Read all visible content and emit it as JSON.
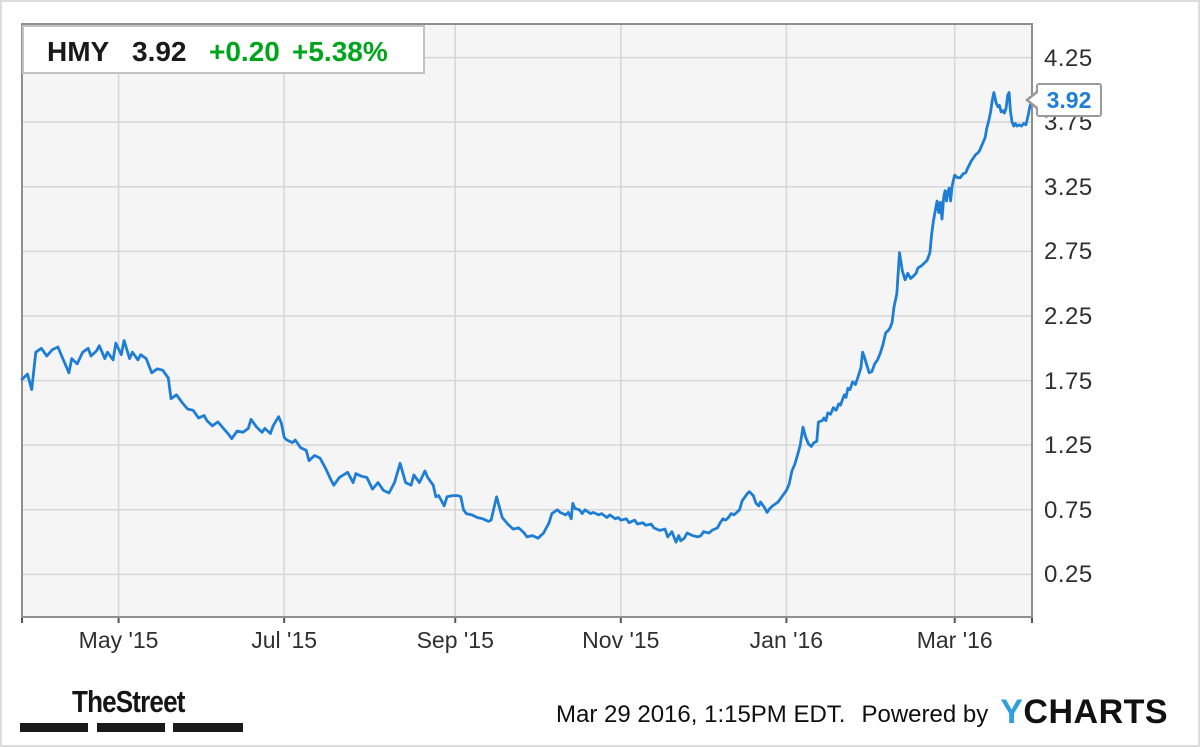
{
  "header": {
    "ticker": "HMY",
    "price": "3.92",
    "change": "+0.20",
    "change_pct": "+5.38%"
  },
  "callout": {
    "label": "3.92"
  },
  "footer": {
    "thestreet_logo": "TheStreet",
    "timestamp": "Mar 29 2016, 1:15PM EDT.",
    "powered_by": "Powered by",
    "ycharts_y": "Y",
    "ycharts_rest": "CHARTS"
  },
  "colors": {
    "line": "#1e7ed6",
    "positive": "#00a51c",
    "text_dark": "#1a1a1a",
    "axis_label": "#2f2f2f",
    "callout_price": "#1e7ed6",
    "ycharts_y_blue": "#2f9fe0",
    "plot_bg": "#f5f5f5",
    "gridline": "#d6d6d6",
    "plot_border": "#8f8f8f",
    "tick_mark": "#555555"
  },
  "chart_data": {
    "type": "line",
    "ticker": "HMY",
    "period": "1 year",
    "last_price": 3.92,
    "x_start_date": "2015-03-29",
    "x_end_date": "2016-03-29",
    "x_tick_labels": [
      "May '15",
      "Jul '15",
      "Sep '15",
      "Nov '15",
      "Jan '16",
      "Mar '16"
    ],
    "x_tick_days": [
      35,
      95,
      157,
      217,
      277,
      338
    ],
    "xlim_days": [
      0,
      366
    ],
    "y_ticks": [
      0.25,
      0.75,
      1.25,
      1.75,
      2.25,
      2.75,
      3.25,
      3.75,
      4.25
    ],
    "ylim": [
      -0.08,
      4.51
    ],
    "y_axis_side": "right",
    "grid": true,
    "series": [
      {
        "name": "HMY",
        "points_format": "[days_since_2015-03-29, price_usd]",
        "points": [
          [
            0,
            1.76
          ],
          [
            2,
            1.8
          ],
          [
            3.5,
            1.68
          ],
          [
            5,
            1.97
          ],
          [
            7,
            2.0
          ],
          [
            9,
            1.94
          ],
          [
            11,
            1.99
          ],
          [
            13,
            2.01
          ],
          [
            15,
            1.91
          ],
          [
            17,
            1.81
          ],
          [
            18,
            1.92
          ],
          [
            20,
            1.88
          ],
          [
            22,
            1.97
          ],
          [
            24,
            2.0
          ],
          [
            25,
            1.94
          ],
          [
            27,
            1.98
          ],
          [
            28,
            2.02
          ],
          [
            30,
            1.92
          ],
          [
            31,
            1.97
          ],
          [
            33,
            1.91
          ],
          [
            34,
            2.04
          ],
          [
            36,
            1.95
          ],
          [
            37,
            2.06
          ],
          [
            39,
            1.92
          ],
          [
            40,
            1.97
          ],
          [
            42,
            1.91
          ],
          [
            43,
            1.95
          ],
          [
            45,
            1.92
          ],
          [
            47,
            1.81
          ],
          [
            49,
            1.84
          ],
          [
            51,
            1.83
          ],
          [
            53,
            1.77
          ],
          [
            54,
            1.61
          ],
          [
            56,
            1.64
          ],
          [
            58,
            1.58
          ],
          [
            60,
            1.53
          ],
          [
            62,
            1.52
          ],
          [
            64,
            1.46
          ],
          [
            66,
            1.48
          ],
          [
            67,
            1.44
          ],
          [
            69,
            1.4
          ],
          [
            71,
            1.43
          ],
          [
            73,
            1.38
          ],
          [
            75,
            1.33
          ],
          [
            76,
            1.3
          ],
          [
            78,
            1.36
          ],
          [
            80,
            1.35
          ],
          [
            82,
            1.38
          ],
          [
            83,
            1.45
          ],
          [
            85,
            1.39
          ],
          [
            87,
            1.35
          ],
          [
            88,
            1.38
          ],
          [
            90,
            1.34
          ],
          [
            91,
            1.4
          ],
          [
            93,
            1.47
          ],
          [
            94,
            1.42
          ],
          [
            95,
            1.31
          ],
          [
            96,
            1.29
          ],
          [
            98,
            1.27
          ],
          [
            99,
            1.29
          ],
          [
            101,
            1.23
          ],
          [
            103,
            1.21
          ],
          [
            104,
            1.13
          ],
          [
            106,
            1.17
          ],
          [
            108,
            1.15
          ],
          [
            110,
            1.07
          ],
          [
            112,
            0.98
          ],
          [
            113,
            0.94
          ],
          [
            115,
            1.0
          ],
          [
            118,
            1.04
          ],
          [
            120,
            0.96
          ],
          [
            121,
            1.03
          ],
          [
            123,
            1.01
          ],
          [
            125,
            1.0
          ],
          [
            127,
            0.91
          ],
          [
            129,
            0.96
          ],
          [
            131,
            0.9
          ],
          [
            133,
            0.88
          ],
          [
            135,
            0.96
          ],
          [
            137,
            1.11
          ],
          [
            139,
            0.96
          ],
          [
            141,
            0.94
          ],
          [
            142,
            1.02
          ],
          [
            144,
            0.96
          ],
          [
            146,
            1.05
          ],
          [
            147,
            1.0
          ],
          [
            149,
            0.94
          ],
          [
            150,
            0.85
          ],
          [
            151,
            0.86
          ],
          [
            153,
            0.78
          ],
          [
            154,
            0.85
          ],
          [
            156,
            0.86
          ],
          [
            158,
            0.86
          ],
          [
            159,
            0.85
          ],
          [
            160,
            0.75
          ],
          [
            161,
            0.72
          ],
          [
            163,
            0.71
          ],
          [
            165,
            0.69
          ],
          [
            167,
            0.68
          ],
          [
            169,
            0.66
          ],
          [
            170,
            0.67
          ],
          [
            172,
            0.85
          ],
          [
            174,
            0.69
          ],
          [
            176,
            0.64
          ],
          [
            178,
            0.6
          ],
          [
            180,
            0.61
          ],
          [
            182,
            0.57
          ],
          [
            183,
            0.54
          ],
          [
            185,
            0.55
          ],
          [
            187,
            0.53
          ],
          [
            189,
            0.57
          ],
          [
            190,
            0.61
          ],
          [
            191,
            0.65
          ],
          [
            192,
            0.72
          ],
          [
            194,
            0.75
          ],
          [
            195,
            0.73
          ],
          [
            197,
            0.71
          ],
          [
            198,
            0.73
          ],
          [
            199,
            0.68
          ],
          [
            199.6,
            0.8
          ],
          [
            200.4,
            0.76
          ],
          [
            202,
            0.75
          ],
          [
            203,
            0.72
          ],
          [
            204,
            0.75
          ],
          [
            206,
            0.72
          ],
          [
            207,
            0.73
          ],
          [
            209,
            0.71
          ],
          [
            210,
            0.72
          ],
          [
            212,
            0.69
          ],
          [
            213,
            0.71
          ],
          [
            215,
            0.68
          ],
          [
            216,
            0.69
          ],
          [
            217,
            0.67
          ],
          [
            219,
            0.68
          ],
          [
            220,
            0.65
          ],
          [
            222,
            0.67
          ],
          [
            223,
            0.64
          ],
          [
            225,
            0.65
          ],
          [
            226,
            0.63
          ],
          [
            228,
            0.64
          ],
          [
            229,
            0.61
          ],
          [
            231,
            0.59
          ],
          [
            233,
            0.6
          ],
          [
            234,
            0.54
          ],
          [
            235.5,
            0.58
          ],
          [
            237,
            0.5
          ],
          [
            238,
            0.55
          ],
          [
            238.7,
            0.51
          ],
          [
            240,
            0.53
          ],
          [
            241,
            0.57
          ],
          [
            243,
            0.55
          ],
          [
            245,
            0.54
          ],
          [
            246,
            0.55
          ],
          [
            247,
            0.58
          ],
          [
            249,
            0.57
          ],
          [
            250,
            0.59
          ],
          [
            252,
            0.61
          ],
          [
            253,
            0.65
          ],
          [
            254,
            0.68
          ],
          [
            255,
            0.67
          ],
          [
            256,
            0.69
          ],
          [
            257,
            0.72
          ],
          [
            258,
            0.71
          ],
          [
            260,
            0.75
          ],
          [
            261,
            0.82
          ],
          [
            263,
            0.88
          ],
          [
            263.6,
            0.89
          ],
          [
            265,
            0.86
          ],
          [
            266,
            0.8
          ],
          [
            267,
            0.78
          ],
          [
            267.6,
            0.81
          ],
          [
            269,
            0.77
          ],
          [
            270,
            0.73
          ],
          [
            271,
            0.76
          ],
          [
            272,
            0.78
          ],
          [
            274,
            0.81
          ],
          [
            275,
            0.84
          ],
          [
            276,
            0.87
          ],
          [
            277,
            0.9
          ],
          [
            278,
            0.95
          ],
          [
            279,
            1.05
          ],
          [
            280,
            1.1
          ],
          [
            281,
            1.17
          ],
          [
            282,
            1.25
          ],
          [
            283,
            1.39
          ],
          [
            284,
            1.31
          ],
          [
            285,
            1.26
          ],
          [
            286,
            1.24
          ],
          [
            287,
            1.27
          ],
          [
            288,
            1.28
          ],
          [
            288.6,
            1.43
          ],
          [
            290,
            1.44
          ],
          [
            290.6,
            1.46
          ],
          [
            291.3,
            1.44
          ],
          [
            292,
            1.5
          ],
          [
            293,
            1.49
          ],
          [
            294,
            1.54
          ],
          [
            295,
            1.52
          ],
          [
            296,
            1.57
          ],
          [
            296.6,
            1.56
          ],
          [
            298,
            1.64
          ],
          [
            298.6,
            1.62
          ],
          [
            299.3,
            1.69
          ],
          [
            300,
            1.68
          ],
          [
            301,
            1.74
          ],
          [
            302,
            1.72
          ],
          [
            303,
            1.78
          ],
          [
            304,
            1.85
          ],
          [
            304.6,
            1.97
          ],
          [
            305.3,
            1.93
          ],
          [
            306,
            1.88
          ],
          [
            307,
            1.81
          ],
          [
            308,
            1.82
          ],
          [
            309,
            1.88
          ],
          [
            310,
            1.91
          ],
          [
            311,
            1.96
          ],
          [
            312,
            2.03
          ],
          [
            313,
            2.12
          ],
          [
            314,
            2.14
          ],
          [
            314.6,
            2.16
          ],
          [
            315.3,
            2.2
          ],
          [
            316,
            2.32
          ],
          [
            317,
            2.42
          ],
          [
            318,
            2.74
          ],
          [
            319,
            2.6
          ],
          [
            320,
            2.53
          ],
          [
            321,
            2.58
          ],
          [
            322,
            2.54
          ],
          [
            322.6,
            2.55
          ],
          [
            324,
            2.58
          ],
          [
            324.6,
            2.62
          ],
          [
            325.3,
            2.63
          ],
          [
            326,
            2.64
          ],
          [
            327,
            2.66
          ],
          [
            328,
            2.68
          ],
          [
            329,
            2.74
          ],
          [
            329.6,
            2.88
          ],
          [
            330.3,
            2.99
          ],
          [
            331,
            3.07
          ],
          [
            331.6,
            3.14
          ],
          [
            332.2,
            3.05
          ],
          [
            332.8,
            3.13
          ],
          [
            333.4,
            3.0
          ],
          [
            334,
            3.17
          ],
          [
            334.5,
            3.22
          ],
          [
            335,
            3.14
          ],
          [
            335.5,
            3.21
          ],
          [
            336,
            3.24
          ],
          [
            336.5,
            3.14
          ],
          [
            337,
            3.25
          ],
          [
            337.5,
            3.3
          ],
          [
            338,
            3.34
          ],
          [
            339,
            3.32
          ],
          [
            340,
            3.32
          ],
          [
            341,
            3.35
          ],
          [
            342,
            3.36
          ],
          [
            342.6,
            3.39
          ],
          [
            343.3,
            3.42
          ],
          [
            344,
            3.45
          ],
          [
            345,
            3.48
          ],
          [
            345.6,
            3.5
          ],
          [
            346.3,
            3.51
          ],
          [
            347,
            3.53
          ],
          [
            348,
            3.58
          ],
          [
            349,
            3.63
          ],
          [
            349.6,
            3.7
          ],
          [
            350.3,
            3.76
          ],
          [
            351,
            3.83
          ],
          [
            351.6,
            3.92
          ],
          [
            352.2,
            3.98
          ],
          [
            353,
            3.9
          ],
          [
            353.6,
            3.87
          ],
          [
            354.2,
            3.88
          ],
          [
            354.8,
            3.83
          ],
          [
            355.4,
            3.84
          ],
          [
            356,
            3.82
          ],
          [
            356.6,
            3.86
          ],
          [
            357.2,
            3.96
          ],
          [
            357.7,
            3.98
          ],
          [
            358.2,
            3.83
          ],
          [
            358.8,
            3.75
          ],
          [
            359.4,
            3.72
          ],
          [
            360,
            3.74
          ],
          [
            360.6,
            3.72
          ],
          [
            361.4,
            3.73
          ],
          [
            362.2,
            3.72
          ],
          [
            363,
            3.74
          ],
          [
            363.8,
            3.73
          ],
          [
            364.6,
            3.8
          ],
          [
            365.3,
            3.88
          ],
          [
            366,
            3.92
          ]
        ]
      }
    ]
  }
}
